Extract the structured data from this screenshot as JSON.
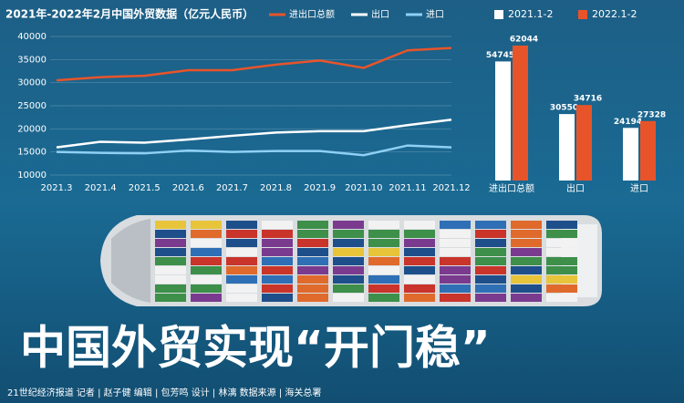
{
  "chart_data": [
    {
      "type": "line",
      "title": "2021年-2022年2月中国外贸数据（亿元人民币）",
      "categories": [
        "2021.3",
        "2021.4",
        "2021.5",
        "2021.6",
        "2021.7",
        "2021.8",
        "2021.9",
        "2021.10",
        "2021.11",
        "2021.12"
      ],
      "series": [
        {
          "name": "进出口总额",
          "color": "#e8542a",
          "values": [
            30500,
            31200,
            31500,
            32700,
            32700,
            33900,
            34800,
            33200,
            37000,
            37500
          ]
        },
        {
          "name": "出口",
          "color": "#ffffff",
          "values": [
            16000,
            17200,
            17000,
            17700,
            18500,
            19200,
            19500,
            19500,
            20800,
            22000
          ]
        },
        {
          "name": "进口",
          "color": "#8fd0f5",
          "values": [
            15000,
            14800,
            14700,
            15300,
            15000,
            15200,
            15200,
            14300,
            16400,
            16000
          ]
        }
      ],
      "ylim": [
        10000,
        40000
      ],
      "yticks": [
        10000,
        15000,
        20000,
        25000,
        30000,
        35000,
        40000
      ],
      "grid": true
    },
    {
      "type": "bar",
      "categories": [
        "进出口总额",
        "出口",
        "进口"
      ],
      "series": [
        {
          "name": "2021.1-2",
          "color": "#ffffff",
          "values": [
            54745,
            30550,
            24194
          ]
        },
        {
          "name": "2022.1-2",
          "color": "#e8542a",
          "values": [
            62044,
            34716,
            27328
          ]
        }
      ]
    }
  ],
  "headline": "中国外贸实现“开门稳”",
  "footer": "21世纪经济报道  记者 | 赵子健   编辑 | 包芳鸣   设计 | 林漓   数据来源 | 海关总署"
}
